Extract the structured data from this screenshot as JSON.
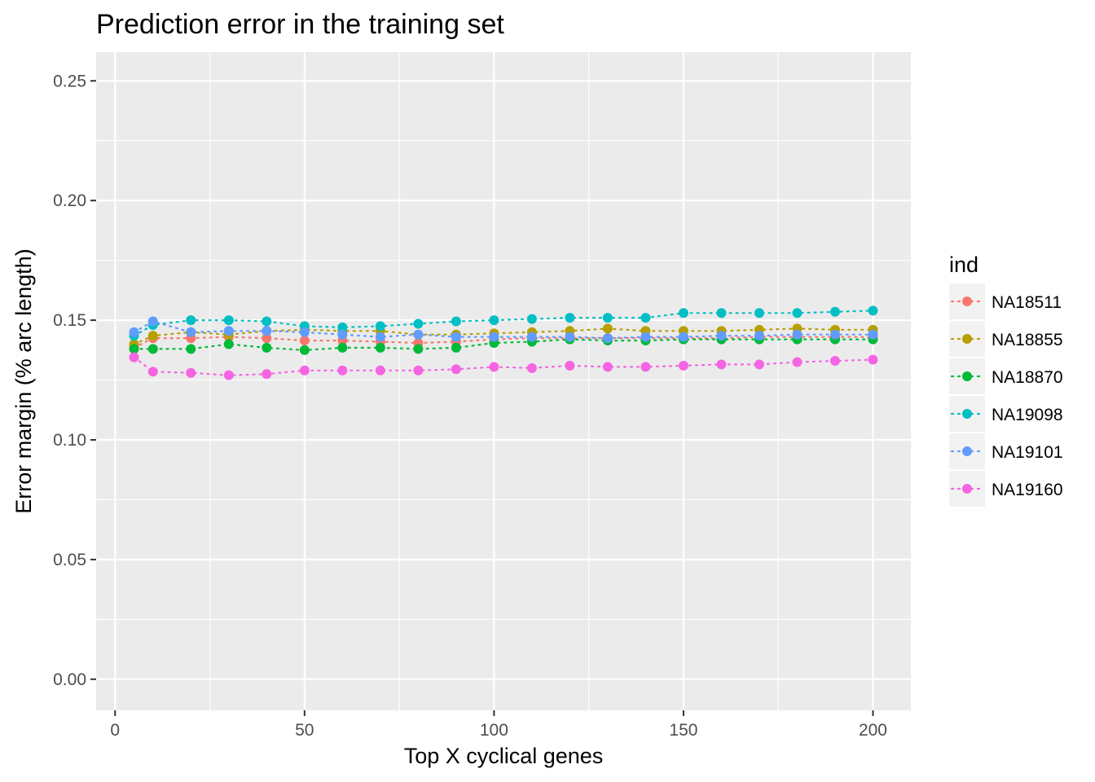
{
  "chart_data": {
    "type": "line",
    "title": "Prediction error in the training set",
    "xlabel": "Top X cyclical genes",
    "ylabel": "Error margin (% arc length)",
    "xlim": [
      -5,
      210
    ],
    "ylim": [
      -0.013,
      0.262
    ],
    "x_ticks": [
      0,
      50,
      100,
      150,
      200
    ],
    "x_tick_labels": [
      "0",
      "50",
      "100",
      "150",
      "200"
    ],
    "y_ticks": [
      0,
      0.05,
      0.1,
      0.15,
      0.2,
      0.25
    ],
    "y_tick_labels": [
      "0.00",
      "0.05",
      "0.10",
      "0.15",
      "0.20",
      "0.25"
    ],
    "grid": true,
    "line_style": "dotted",
    "legend": {
      "title": "ind",
      "position": "right"
    },
    "x": [
      5,
      10,
      20,
      30,
      40,
      50,
      60,
      70,
      80,
      90,
      100,
      110,
      120,
      130,
      140,
      150,
      160,
      170,
      180,
      190,
      200
    ],
    "series": [
      {
        "name": "NA18511",
        "color": "#F8766D",
        "values": [
          0.1385,
          0.1425,
          0.1425,
          0.143,
          0.1425,
          0.1415,
          0.1415,
          0.141,
          0.1405,
          0.141,
          0.142,
          0.1425,
          0.1425,
          0.1425,
          0.1425,
          0.1425,
          0.1425,
          0.143,
          0.143,
          0.143,
          0.143
        ]
      },
      {
        "name": "NA18855",
        "color": "#B79F00",
        "values": [
          0.14,
          0.1435,
          0.145,
          0.144,
          0.1455,
          0.146,
          0.1455,
          0.1455,
          0.144,
          0.144,
          0.1445,
          0.145,
          0.1455,
          0.1465,
          0.1455,
          0.1455,
          0.1455,
          0.146,
          0.1465,
          0.146,
          0.146
        ]
      },
      {
        "name": "NA18870",
        "color": "#00BA38",
        "values": [
          0.138,
          0.138,
          0.138,
          0.14,
          0.1385,
          0.1375,
          0.1385,
          0.1385,
          0.138,
          0.1385,
          0.1405,
          0.141,
          0.142,
          0.1415,
          0.1415,
          0.142,
          0.142,
          0.142,
          0.142,
          0.142,
          0.142
        ]
      },
      {
        "name": "NA19098",
        "color": "#00BFC4",
        "values": [
          0.1435,
          0.148,
          0.15,
          0.15,
          0.1495,
          0.1475,
          0.147,
          0.1475,
          0.1485,
          0.1495,
          0.15,
          0.1505,
          0.151,
          0.151,
          0.151,
          0.153,
          0.153,
          0.153,
          0.153,
          0.1535,
          0.154
        ]
      },
      {
        "name": "NA19101",
        "color": "#619CFF",
        "values": [
          0.145,
          0.1495,
          0.145,
          0.1455,
          0.1455,
          0.145,
          0.144,
          0.143,
          0.144,
          0.143,
          0.143,
          0.143,
          0.143,
          0.1425,
          0.143,
          0.143,
          0.1435,
          0.1435,
          0.144,
          0.144,
          0.144
        ]
      },
      {
        "name": "NA19160",
        "color": "#F564E3",
        "values": [
          0.1345,
          0.1285,
          0.128,
          0.127,
          0.1275,
          0.129,
          0.129,
          0.129,
          0.129,
          0.1295,
          0.1305,
          0.13,
          0.131,
          0.1305,
          0.1305,
          0.131,
          0.1315,
          0.1315,
          0.1325,
          0.133,
          0.1335
        ]
      }
    ]
  }
}
